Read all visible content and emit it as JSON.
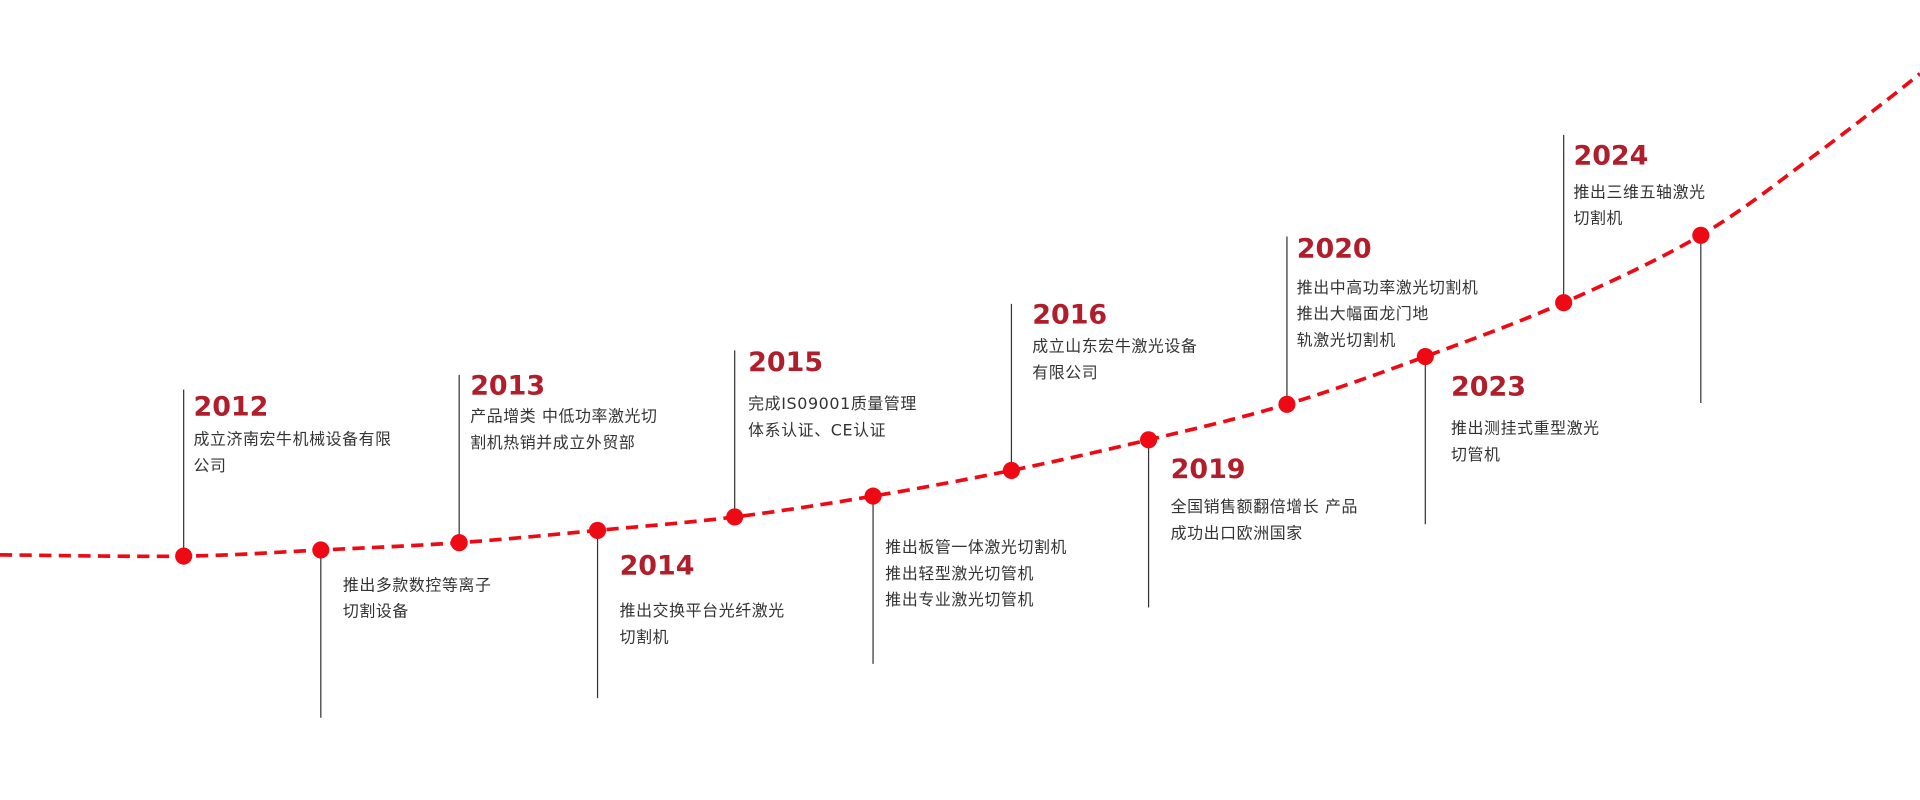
{
  "events": [
    {
      "year": "2012",
      "lines": [
        "成立济南宏牛机械设备有限",
        "公司"
      ]
    },
    {
      "lines": [
        "推出多款数控等离子",
        "切割设备"
      ]
    },
    {
      "year": "2013",
      "lines": [
        "产品增类  中低功率激光切",
        "割机热销并成立外贸部"
      ]
    },
    {
      "year": "2014",
      "lines": [
        "推出交换平台光纤激光",
        "切割机"
      ]
    },
    {
      "year": "2015",
      "lines": [
        "完成IS09001质量管理",
        "体系认证、CE认证"
      ]
    },
    {
      "lines": [
        "推出板管一体激光切割机",
        "推出轻型激光切管机",
        "推出专业激光切管机"
      ]
    },
    {
      "year": "2016",
      "lines": [
        "成立山东宏牛激光设备",
        "有限公司"
      ]
    },
    {
      "year": "2019",
      "lines": [
        "全国销售额翻倍增长    产品",
        "成功出口欧洲国家"
      ]
    },
    {
      "year": "2020",
      "lines": [
        "推出中高功率激光切割机",
        "推出大幅面龙门地",
        "轨激光切割机"
      ]
    },
    {
      "year": "2023",
      "lines": [
        "推出测挂式重型激光",
        "切管机"
      ]
    },
    {
      "year": "2024",
      "lines": [
        "推出三维五轴激光",
        "切割机"
      ]
    }
  ]
}
